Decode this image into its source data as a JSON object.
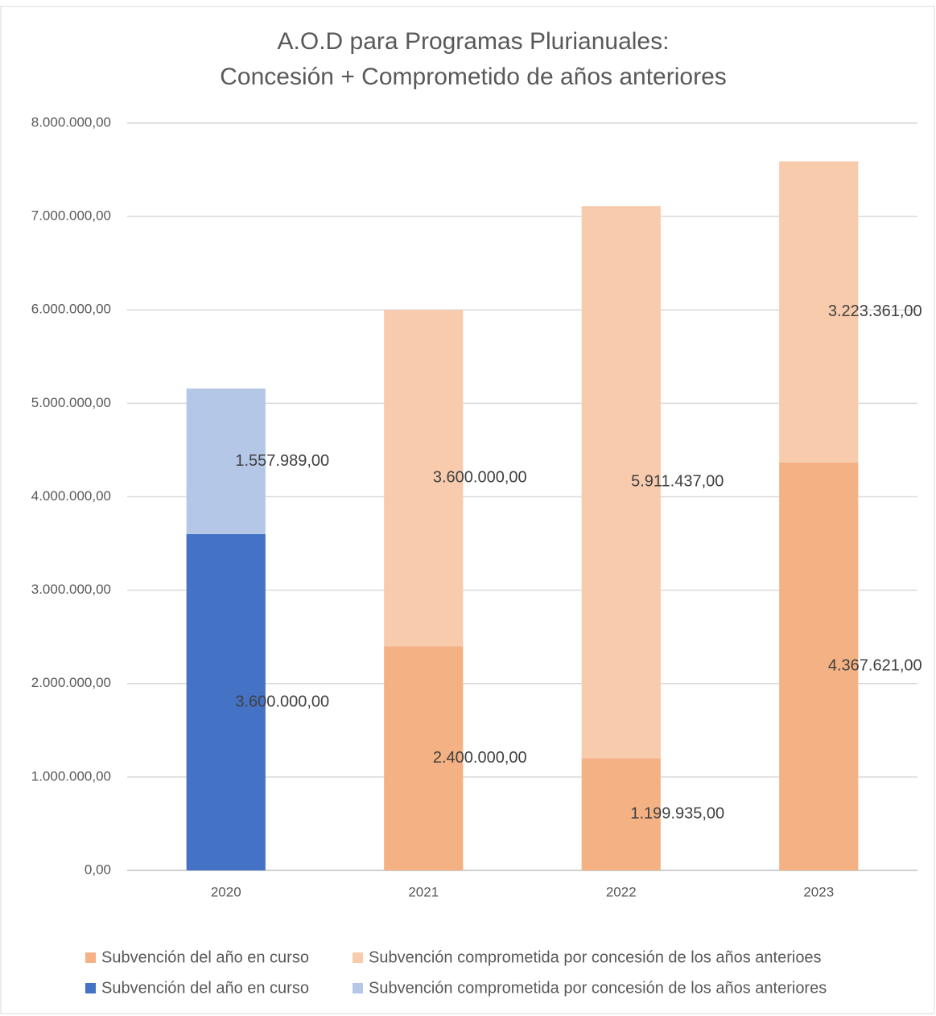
{
  "chart_data": {
    "type": "stacked_bar",
    "title": [
      "A.O.D para Programas Plurianuales:",
      "Concesión + Comprometido de años anteriores"
    ],
    "categories": [
      "2020",
      "2021",
      "2022",
      "2023"
    ],
    "series": [
      {
        "name": "Subvención del año en curso",
        "color": "#f4b183",
        "values": [
          null,
          2400000,
          1199935,
          4367621
        ],
        "value_labels": [
          null,
          "2.400.000,00",
          "1.199.935,00",
          "4.367.621,00"
        ]
      },
      {
        "name": "Subvención comprometida por concesión de los años anterioes",
        "color": "#f8cbad",
        "values": [
          null,
          3600000,
          5911437,
          3223361
        ],
        "value_labels": [
          null,
          "3.600.000,00",
          "5.911.437,00",
          "3.223.361,00"
        ]
      },
      {
        "name": "Subvención del año en curso",
        "color": "#4472c4",
        "values": [
          3600000,
          null,
          null,
          null
        ],
        "value_labels": [
          "3.600.000,00",
          null,
          null,
          null
        ]
      },
      {
        "name": "Subvención comprometida por concesión de los años anteriores",
        "color": "#b4c7e7",
        "values": [
          1557989,
          null,
          null,
          null
        ],
        "value_labels": [
          "1.557.989,00",
          null,
          null,
          null
        ]
      }
    ],
    "ylim": [
      0,
      8000000
    ],
    "yticks": [
      {
        "value": 0,
        "label": "0,00"
      },
      {
        "value": 1000000,
        "label": "1.000.000,00"
      },
      {
        "value": 2000000,
        "label": "2.000.000,00"
      },
      {
        "value": 3000000,
        "label": "3.000.000,00"
      },
      {
        "value": 4000000,
        "label": "4.000.000,00"
      },
      {
        "value": 5000000,
        "label": "5.000.000,00"
      },
      {
        "value": 6000000,
        "label": "6.000.000,00"
      },
      {
        "value": 7000000,
        "label": "7.000.000,00"
      },
      {
        "value": 8000000,
        "label": "8.000.000,00"
      }
    ],
    "grid": true
  }
}
